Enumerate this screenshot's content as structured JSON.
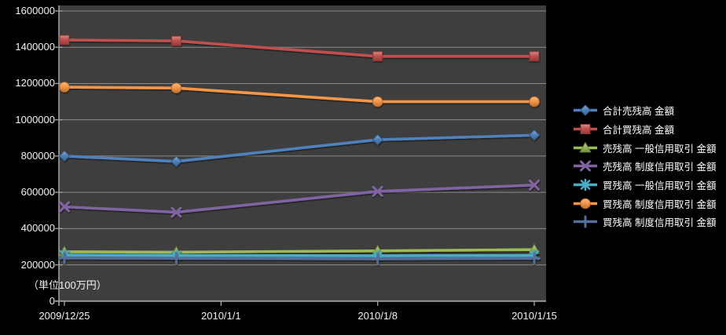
{
  "colors": {
    "background": "#000000",
    "plot_background": "#3E3E3E",
    "gridline": "#A6A6A6",
    "axis": "#9E9E9E",
    "text": "#F2F2F2",
    "legend_text": "#FFFFFF"
  },
  "chart_data": {
    "type": "line",
    "title": "",
    "unit_note": "（単位100万円）",
    "grid": true,
    "legend_position": "right",
    "ylim": [
      0,
      1600000
    ],
    "y_tick_step": 200000,
    "y_tick_labels": [
      "1600000",
      "1400000",
      "1200000",
      "1000000",
      "800000",
      "600000",
      "400000",
      "200000",
      "0"
    ],
    "x_tick_labels": [
      "2009/12/25",
      "2010/1/1",
      "2010/1/8",
      "2010/1/15"
    ],
    "x_tick_days": [
      0,
      7,
      14,
      21
    ],
    "point_dates": [
      "2009/12/25",
      "2009/12/30",
      "2010/1/8",
      "2010/1/15"
    ],
    "point_days": [
      0,
      5,
      14,
      21
    ],
    "series": [
      {
        "name": "合計売残高 金額",
        "color": "#4F81BD",
        "marker": "diamond",
        "values": [
          800000,
          770000,
          890000,
          915000
        ]
      },
      {
        "name": "合計買残高 金額",
        "color": "#C0504D",
        "marker": "square",
        "values": [
          1440000,
          1435000,
          1350000,
          1350000
        ]
      },
      {
        "name": "売残高 一般信用取引 金額",
        "color": "#9BBB59",
        "marker": "triangle",
        "values": [
          272000,
          270000,
          277000,
          284000
        ]
      },
      {
        "name": "売残高 制度信用取引 金額",
        "color": "#8064A2",
        "marker": "x",
        "values": [
          520000,
          490000,
          605000,
          640000
        ]
      },
      {
        "name": "買残高 一般信用取引 金額",
        "color": "#4BACC6",
        "marker": "asterisk",
        "values": [
          254000,
          252000,
          250000,
          252000
        ]
      },
      {
        "name": "買残高 制度信用取引 金額",
        "color": "#F79646",
        "marker": "circle",
        "values": [
          1180000,
          1175000,
          1100000,
          1100000
        ]
      },
      {
        "name": "買残高 制度信用取引 金額",
        "color": "#566E99",
        "marker": "plus",
        "values": [
          238000,
          236000,
          233000,
          236000
        ]
      }
    ]
  }
}
